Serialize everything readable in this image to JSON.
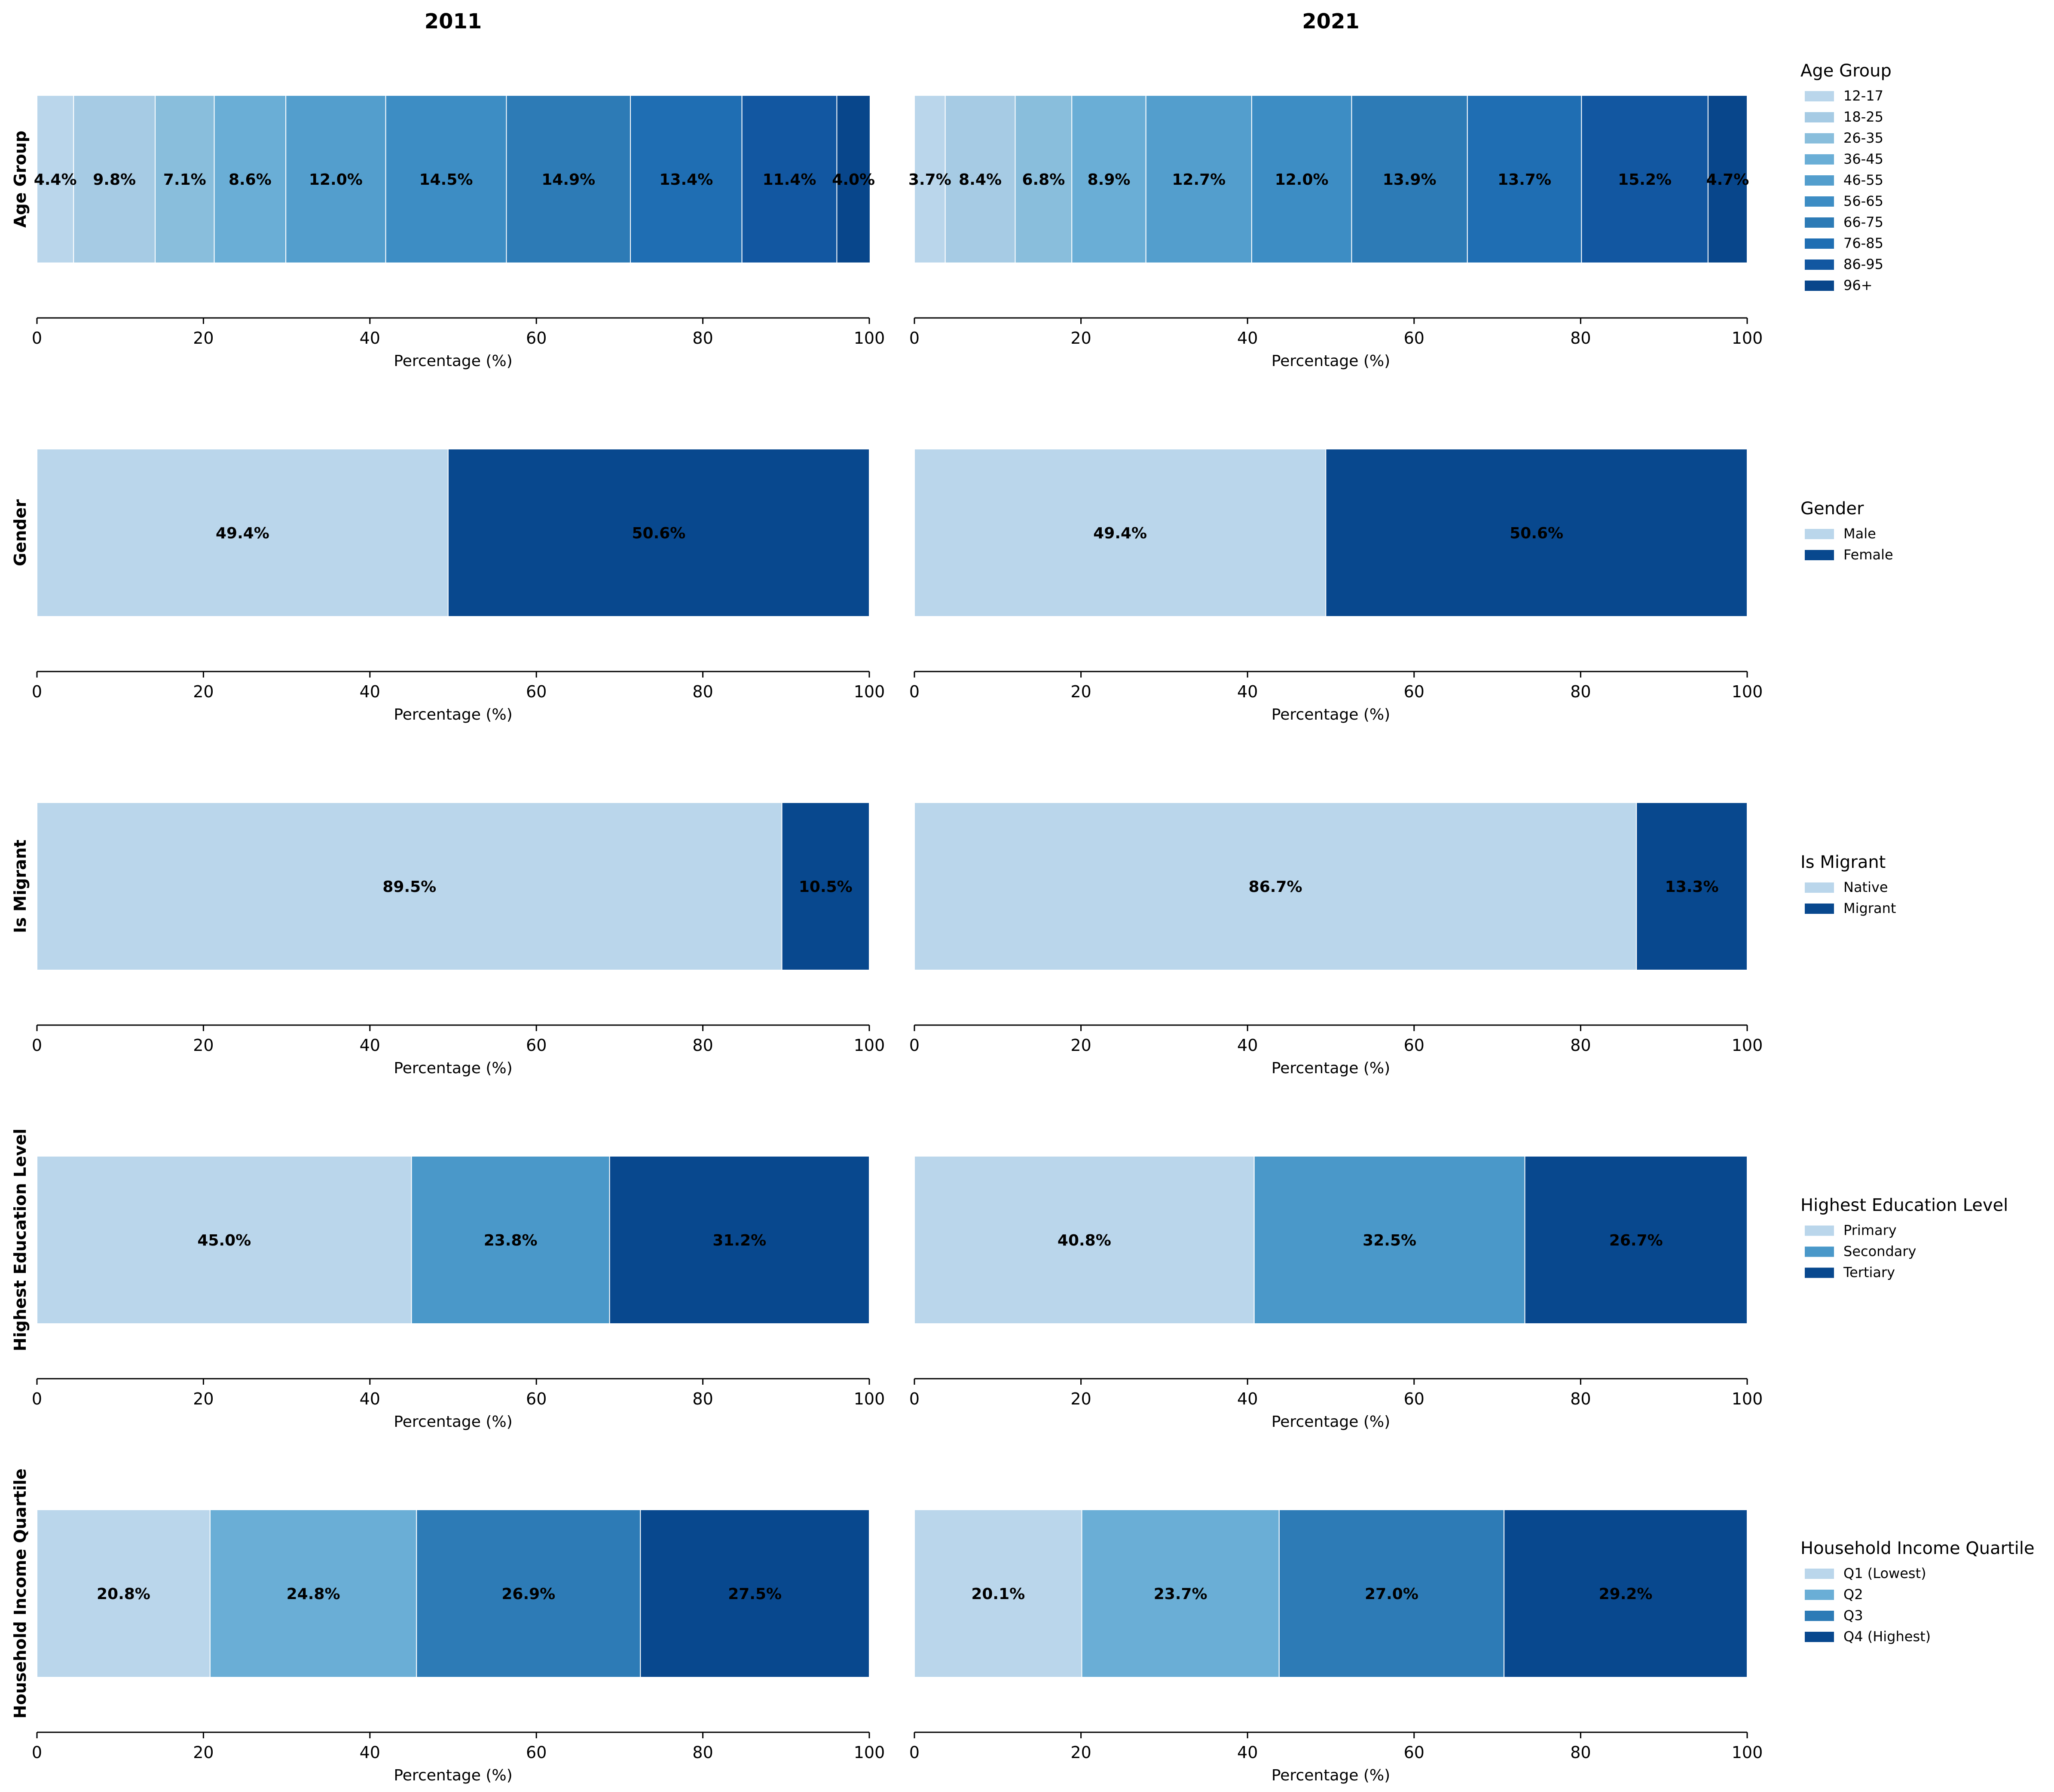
{
  "chart_data": {
    "type": "bar",
    "orientation": "horizontal-stacked-100",
    "years": [
      "2011",
      "2021"
    ],
    "xlabel": "Percentage (%)",
    "xlim": [
      0,
      100
    ],
    "xticks": [
      "0",
      "20",
      "40",
      "60",
      "80",
      "100"
    ],
    "value_suffix": "%",
    "rows": [
      {
        "variable": "Age Group",
        "categories": [
          "12-17",
          "18-25",
          "26-35",
          "36-45",
          "46-55",
          "56-65",
          "66-75",
          "76-85",
          "86-95",
          "96+"
        ],
        "colors": [
          "#bad6eb",
          "#a6cbe4",
          "#89bedc",
          "#6aaed6",
          "#539ecd",
          "#3d8dc4",
          "#2d7bb6",
          "#1f6eb3",
          "#1257a1",
          "#08468b"
        ],
        "values": {
          "2011": [
            4.4,
            9.8,
            7.1,
            8.6,
            12.0,
            14.5,
            14.9,
            13.4,
            11.4,
            4.0
          ],
          "2021": [
            3.7,
            8.4,
            6.8,
            8.9,
            12.7,
            12.0,
            13.9,
            13.7,
            15.2,
            4.7
          ]
        }
      },
      {
        "variable": "Gender",
        "categories": [
          "Male",
          "Female"
        ],
        "colors": [
          "#bad6eb",
          "#08488e"
        ],
        "values": {
          "2011": [
            49.4,
            50.6
          ],
          "2021": [
            49.4,
            50.6
          ]
        }
      },
      {
        "variable": "Is Migrant",
        "categories": [
          "Native",
          "Migrant"
        ],
        "colors": [
          "#bad6eb",
          "#08488e"
        ],
        "values": {
          "2011": [
            89.5,
            10.5
          ],
          "2021": [
            86.7,
            13.3
          ]
        }
      },
      {
        "variable": "Highest Education Level",
        "categories": [
          "Primary",
          "Secondary",
          "Tertiary"
        ],
        "colors": [
          "#bad6eb",
          "#4a98c9",
          "#08488e"
        ],
        "values": {
          "2011": [
            45.0,
            23.8,
            31.2
          ],
          "2021": [
            40.8,
            32.5,
            26.7
          ]
        }
      },
      {
        "variable": "Household Income Quartile",
        "categories": [
          "Q1 (Lowest)",
          "Q2",
          "Q3",
          "Q4 (Highest)"
        ],
        "colors": [
          "#bad6eb",
          "#6aaed6",
          "#2d7bb6",
          "#08488e"
        ],
        "values": {
          "2011": [
            20.8,
            24.8,
            26.9,
            27.5
          ],
          "2021": [
            20.1,
            23.7,
            27.0,
            29.2
          ]
        }
      }
    ]
  }
}
